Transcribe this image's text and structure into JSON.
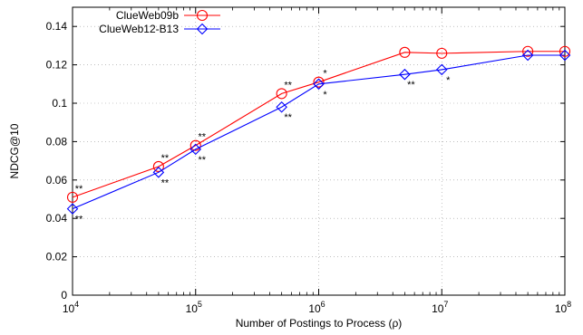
{
  "chart_data": {
    "type": "line",
    "title": "",
    "xlabel": "Number of Postings to Process (ρ)",
    "ylabel": "NDCG@10",
    "x_scale": "log",
    "xlim": [
      10000,
      100000000
    ],
    "ylim": [
      0,
      0.15
    ],
    "x_ticks": [
      {
        "value": 10000,
        "base": "10",
        "exp": "4"
      },
      {
        "value": 100000,
        "base": "10",
        "exp": "5"
      },
      {
        "value": 1000000,
        "base": "10",
        "exp": "6"
      },
      {
        "value": 10000000,
        "base": "10",
        "exp": "7"
      },
      {
        "value": 100000000,
        "base": "10",
        "exp": "8"
      }
    ],
    "y_ticks": [
      {
        "value": 0,
        "label": "0"
      },
      {
        "value": 0.02,
        "label": "0.02"
      },
      {
        "value": 0.04,
        "label": "0.04"
      },
      {
        "value": 0.06,
        "label": "0.06"
      },
      {
        "value": 0.08,
        "label": "0.08"
      },
      {
        "value": 0.1,
        "label": "0.1"
      },
      {
        "value": 0.12,
        "label": "0.12"
      },
      {
        "value": 0.14,
        "label": "0.14"
      }
    ],
    "grid": true,
    "legend_position": "top-left",
    "series": [
      {
        "name": "ClueWeb09b",
        "color": "#ff0000",
        "marker": "circle",
        "points": [
          {
            "x": 10000,
            "y": 0.051,
            "sig": "**"
          },
          {
            "x": 50000,
            "y": 0.067,
            "sig": "**"
          },
          {
            "x": 100000,
            "y": 0.078,
            "sig": "**"
          },
          {
            "x": 500000,
            "y": 0.105,
            "sig": "**"
          },
          {
            "x": 1000000,
            "y": 0.111,
            "sig": "*"
          },
          {
            "x": 5000000,
            "y": 0.1265,
            "sig": ""
          },
          {
            "x": 10000000,
            "y": 0.126,
            "sig": ""
          },
          {
            "x": 50000000,
            "y": 0.127,
            "sig": ""
          },
          {
            "x": 100000000,
            "y": 0.127,
            "sig": ""
          }
        ]
      },
      {
        "name": "ClueWeb12-B13",
        "color": "#0000ff",
        "marker": "diamond",
        "points": [
          {
            "x": 10000,
            "y": 0.045,
            "sig": "**"
          },
          {
            "x": 50000,
            "y": 0.064,
            "sig": "**"
          },
          {
            "x": 100000,
            "y": 0.076,
            "sig": "**"
          },
          {
            "x": 500000,
            "y": 0.098,
            "sig": "**"
          },
          {
            "x": 1000000,
            "y": 0.11,
            "sig": "*"
          },
          {
            "x": 5000000,
            "y": 0.115,
            "sig": "**"
          },
          {
            "x": 10000000,
            "y": 0.1175,
            "sig": "*"
          },
          {
            "x": 50000000,
            "y": 0.125,
            "sig": ""
          },
          {
            "x": 100000000,
            "y": 0.125,
            "sig": ""
          }
        ]
      }
    ]
  }
}
